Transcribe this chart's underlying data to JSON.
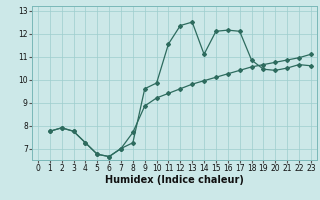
{
  "title": "",
  "xlabel": "Humidex (Indice chaleur)",
  "ylabel": "",
  "bg_color": "#cce8e8",
  "line_color": "#2d6b5e",
  "grid_color": "#9ecece",
  "xlim": [
    -0.5,
    23.5
  ],
  "ylim": [
    6.5,
    13.2
  ],
  "xticks": [
    0,
    1,
    2,
    3,
    4,
    5,
    6,
    7,
    8,
    9,
    10,
    11,
    12,
    13,
    14,
    15,
    16,
    17,
    18,
    19,
    20,
    21,
    22,
    23
  ],
  "yticks": [
    7,
    8,
    9,
    10,
    11,
    12,
    13
  ],
  "line1_x": [
    1,
    2,
    3,
    4,
    5,
    6,
    7,
    8,
    9,
    10,
    11,
    12,
    13,
    14,
    15,
    16,
    17,
    18,
    19,
    20,
    21,
    22,
    23
  ],
  "line1_y": [
    7.75,
    7.9,
    7.75,
    7.25,
    6.75,
    6.65,
    7.0,
    7.25,
    9.6,
    9.85,
    11.55,
    12.35,
    12.5,
    11.1,
    12.1,
    12.15,
    12.1,
    10.85,
    10.45,
    10.4,
    10.5,
    10.65,
    10.6
  ],
  "line2_x": [
    1,
    2,
    3,
    4,
    5,
    6,
    7,
    8,
    9,
    10,
    11,
    12,
    13,
    14,
    15,
    16,
    17,
    18,
    19,
    20,
    21,
    22,
    23
  ],
  "line2_y": [
    7.75,
    7.9,
    7.75,
    7.25,
    6.75,
    6.65,
    7.0,
    7.7,
    8.85,
    9.2,
    9.4,
    9.6,
    9.8,
    9.95,
    10.1,
    10.25,
    10.4,
    10.55,
    10.65,
    10.75,
    10.85,
    10.95,
    11.1
  ],
  "tick_fontsize": 5.5,
  "xlabel_fontsize": 7
}
